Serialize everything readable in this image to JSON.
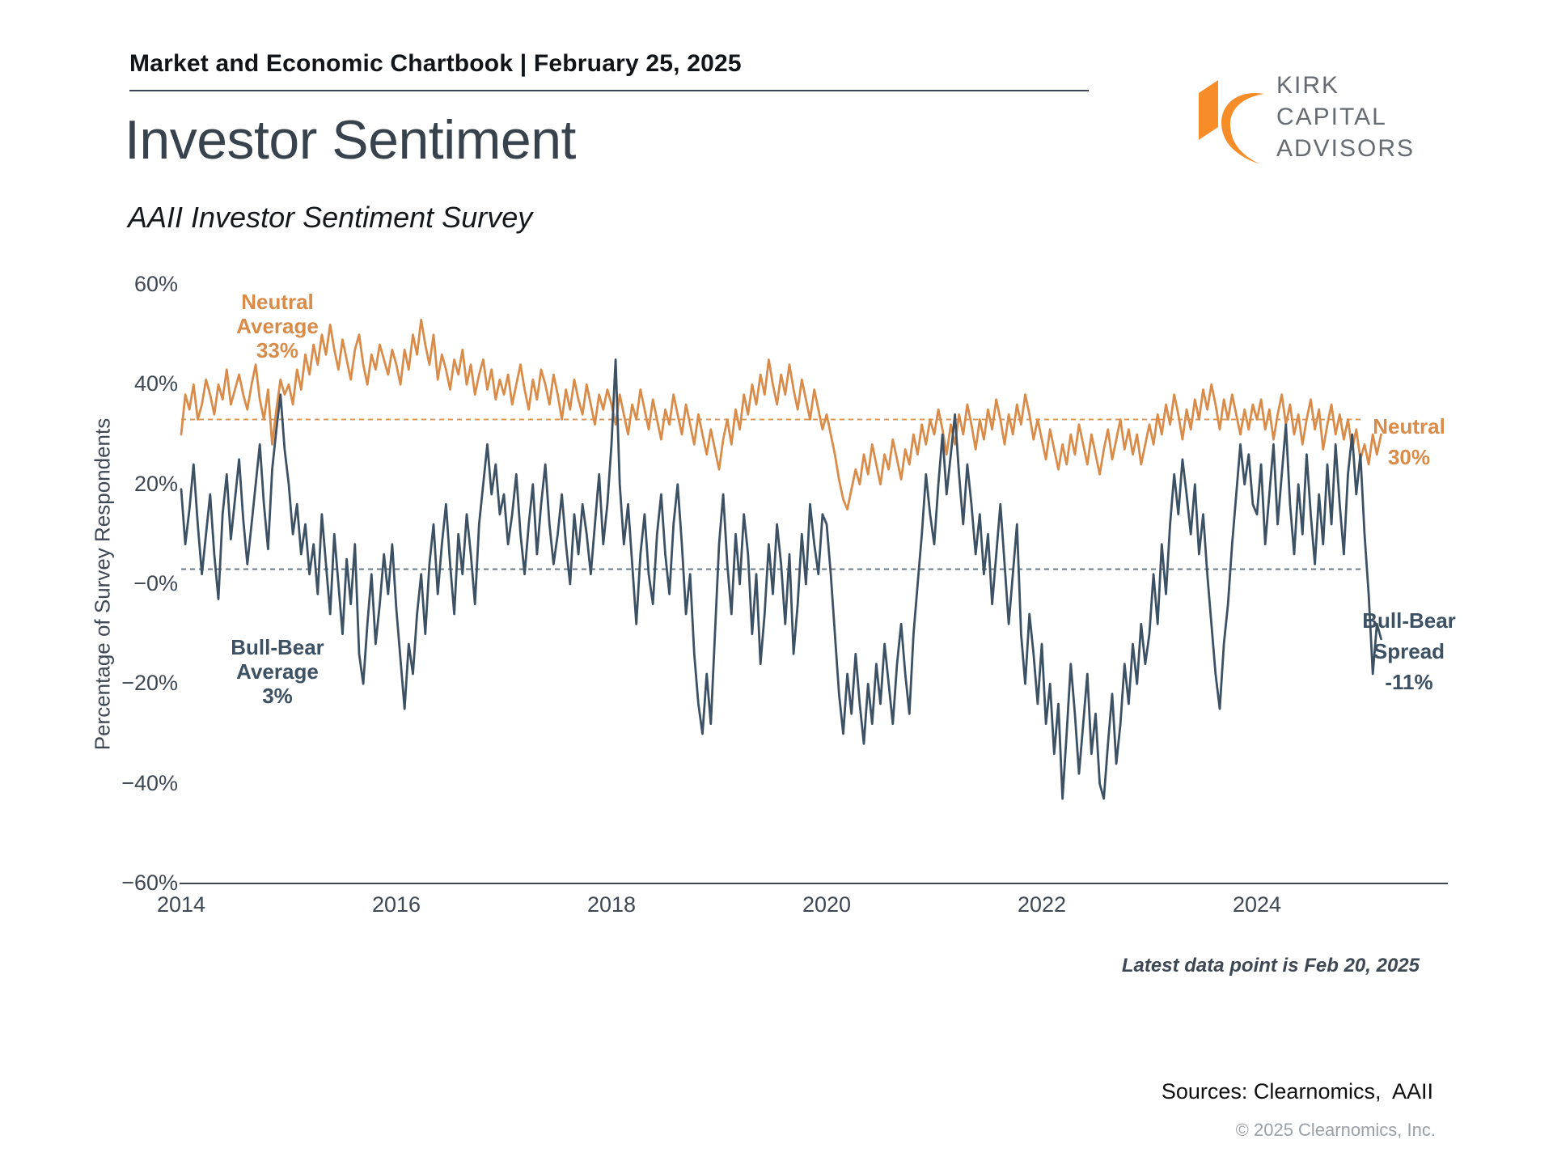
{
  "header": {
    "kicker": "Market and Economic Chartbook | February 25, 2025",
    "title": "Investor Sentiment",
    "subtitle": "AAII Investor Sentiment Survey"
  },
  "logo": {
    "name_lines": [
      "KIRK",
      "CAPITAL",
      "ADVISORS"
    ],
    "orange": "#F78D28",
    "text_color": "#666C72"
  },
  "annotations": {
    "neutral_avg_lines": [
      "Neutral",
      "Average",
      "33%"
    ],
    "bull_bear_avg_lines": [
      "Bull-Bear",
      "Average",
      "3%"
    ],
    "neutral_now_lines": [
      "Neutral",
      "30%"
    ],
    "spread_now_lines": [
      "Bull-Bear",
      "Spread",
      "-11%"
    ]
  },
  "footnote": "Latest data point is Feb 20, 2025",
  "sources": "Sources: Clearnomics,  AAII",
  "copyright": "© 2025 Clearnomics, Inc.",
  "chart_data": {
    "type": "line",
    "title": "AAII Investor Sentiment Survey",
    "xlabel": "",
    "ylabel": "Percentage of Survey Respondents",
    "ylim": [
      -60,
      60
    ],
    "grid": false,
    "legend": "inline-annotations",
    "x_start_year": 2014,
    "x_end_label": "Feb 20, 2025",
    "points_per_year": 26,
    "x_tick_years": [
      2014,
      2016,
      2018,
      2020,
      2022,
      2024
    ],
    "y_ticks": [
      {
        "label": "60%",
        "value": 60
      },
      {
        "label": "40%",
        "value": 40
      },
      {
        "label": "20%",
        "value": 20
      },
      {
        "label": "−0%",
        "value": 0
      },
      {
        "label": "−20%",
        "value": -20
      },
      {
        "label": "−40%",
        "value": -40
      },
      {
        "label": "−60%",
        "value": -60
      }
    ],
    "series": [
      {
        "name": "Neutral",
        "color": "#D98C49",
        "average_pct": 33,
        "latest_pct": 30,
        "average_line": "dashed",
        "values": [
          30,
          38,
          35,
          40,
          33,
          36,
          41,
          38,
          34,
          40,
          37,
          43,
          36,
          39,
          42,
          38,
          35,
          40,
          44,
          37,
          33,
          39,
          28,
          35,
          41,
          38,
          40,
          36,
          43,
          39,
          46,
          42,
          48,
          44,
          50,
          46,
          52,
          47,
          43,
          49,
          45,
          41,
          47,
          50,
          44,
          40,
          46,
          43,
          48,
          45,
          42,
          47,
          44,
          40,
          47,
          43,
          50,
          46,
          53,
          48,
          44,
          50,
          41,
          46,
          43,
          39,
          45,
          42,
          47,
          40,
          44,
          38,
          42,
          45,
          39,
          43,
          37,
          41,
          38,
          42,
          36,
          40,
          44,
          39,
          35,
          41,
          37,
          43,
          40,
          36,
          42,
          38,
          33,
          39,
          35,
          41,
          37,
          34,
          40,
          36,
          32,
          38,
          35,
          39,
          36,
          32,
          38,
          34,
          30,
          36,
          33,
          39,
          35,
          31,
          37,
          33,
          29,
          35,
          32,
          38,
          34,
          30,
          36,
          32,
          28,
          34,
          30,
          26,
          31,
          27,
          23,
          29,
          33,
          28,
          35,
          31,
          38,
          34,
          40,
          36,
          42,
          38,
          45,
          40,
          36,
          42,
          38,
          44,
          39,
          35,
          41,
          37,
          33,
          39,
          35,
          31,
          34,
          30,
          26,
          21,
          17,
          15,
          19,
          23,
          20,
          26,
          22,
          28,
          24,
          20,
          26,
          23,
          29,
          25,
          21,
          27,
          24,
          30,
          26,
          32,
          28,
          33,
          30,
          35,
          31,
          26,
          32,
          28,
          34,
          30,
          36,
          32,
          27,
          33,
          29,
          35,
          31,
          37,
          33,
          28,
          34,
          30,
          36,
          32,
          38,
          34,
          29,
          33,
          29,
          25,
          31,
          27,
          23,
          28,
          24,
          30,
          26,
          32,
          28,
          24,
          30,
          26,
          22,
          27,
          31,
          25,
          29,
          33,
          27,
          31,
          26,
          30,
          24,
          28,
          32,
          28,
          34,
          30,
          36,
          32,
          38,
          34,
          29,
          35,
          31,
          37,
          33,
          39,
          35,
          40,
          36,
          31,
          37,
          33,
          38,
          34,
          30,
          35,
          31,
          36,
          33,
          37,
          31,
          35,
          29,
          34,
          38,
          32,
          36,
          30,
          34,
          28,
          33,
          37,
          31,
          35,
          27,
          32,
          36,
          30,
          34,
          29,
          33,
          27,
          31,
          25,
          28,
          24,
          30,
          26,
          30
        ]
      },
      {
        "name": "Bull-Bear Spread",
        "color": "#3C5163",
        "average_pct": 3,
        "latest_pct": -11,
        "average_line": "dashed",
        "values": [
          19,
          8,
          15,
          24,
          12,
          2,
          10,
          18,
          6,
          -3,
          14,
          22,
          9,
          17,
          25,
          13,
          4,
          12,
          20,
          28,
          16,
          7,
          23,
          31,
          38,
          27,
          20,
          10,
          16,
          6,
          12,
          2,
          8,
          -2,
          14,
          4,
          -6,
          10,
          0,
          -10,
          5,
          -4,
          8,
          -14,
          -20,
          -8,
          2,
          -12,
          -4,
          6,
          -2,
          8,
          -5,
          -15,
          -25,
          -12,
          -18,
          -6,
          2,
          -10,
          4,
          12,
          -2,
          8,
          16,
          4,
          -6,
          10,
          2,
          14,
          6,
          -4,
          12,
          20,
          28,
          18,
          24,
          14,
          18,
          8,
          14,
          22,
          10,
          2,
          12,
          20,
          6,
          16,
          24,
          12,
          4,
          10,
          18,
          8,
          0,
          14,
          6,
          16,
          10,
          2,
          12,
          22,
          8,
          16,
          28,
          45,
          20,
          8,
          16,
          4,
          -8,
          6,
          14,
          2,
          -4,
          10,
          18,
          6,
          -2,
          12,
          20,
          8,
          -6,
          2,
          -14,
          -24,
          -30,
          -18,
          -28,
          -10,
          8,
          18,
          4,
          -6,
          10,
          0,
          14,
          6,
          -10,
          2,
          -16,
          -6,
          8,
          -2,
          12,
          4,
          -8,
          6,
          -14,
          -4,
          10,
          0,
          16,
          8,
          2,
          14,
          12,
          2,
          -10,
          -22,
          -30,
          -18,
          -26,
          -14,
          -24,
          -32,
          -20,
          -28,
          -16,
          -24,
          -12,
          -20,
          -28,
          -16,
          -8,
          -18,
          -26,
          -10,
          0,
          10,
          22,
          14,
          8,
          20,
          30,
          18,
          26,
          34,
          22,
          12,
          24,
          16,
          6,
          14,
          2,
          10,
          -4,
          6,
          16,
          4,
          -8,
          2,
          12,
          -10,
          -20,
          -6,
          -14,
          -24,
          -12,
          -28,
          -20,
          -34,
          -24,
          -43,
          -30,
          -16,
          -26,
          -38,
          -28,
          -18,
          -34,
          -26,
          -40,
          -43,
          -32,
          -22,
          -36,
          -28,
          -16,
          -24,
          -12,
          -20,
          -8,
          -16,
          -10,
          2,
          -8,
          8,
          -2,
          12,
          22,
          14,
          25,
          18,
          10,
          20,
          6,
          14,
          2,
          -8,
          -18,
          -25,
          -12,
          -4,
          8,
          18,
          28,
          20,
          26,
          16,
          14,
          24,
          8,
          18,
          28,
          12,
          22,
          32,
          16,
          6,
          20,
          10,
          26,
          14,
          4,
          18,
          8,
          24,
          12,
          28,
          16,
          6,
          22,
          30,
          18,
          26,
          10,
          -2,
          -18,
          -8,
          -11
        ]
      }
    ]
  }
}
